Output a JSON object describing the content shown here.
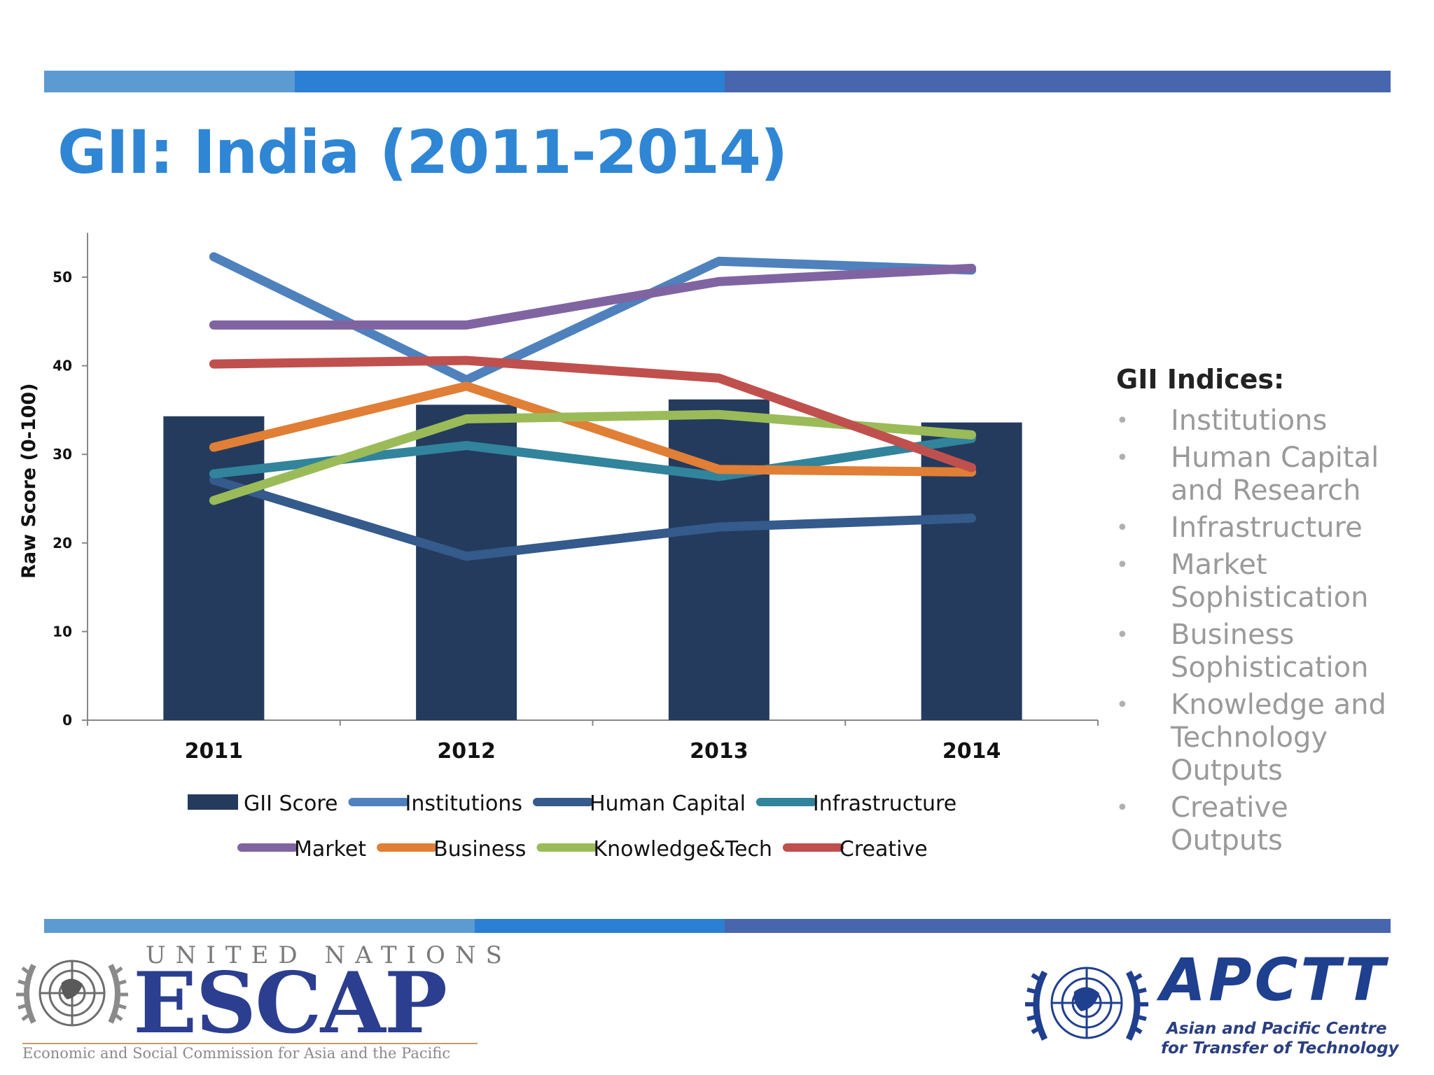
{
  "title": "GII: India (2011-2014)",
  "colors": {
    "strip_light": "#5c9bd1",
    "strip_mid": "#2b7fd4",
    "strip_dark": "#4766ad",
    "title": "#2f86d4"
  },
  "chart_data": {
    "type": "bar",
    "categories": [
      "2011",
      "2012",
      "2013",
      "2014"
    ],
    "ylabel": "Raw Score (0-100)",
    "xlabel": "",
    "ylim": [
      0,
      55
    ],
    "yticks": [
      0,
      10,
      20,
      30,
      40,
      50
    ],
    "grid": false,
    "legend_position": "bottom",
    "series": [
      {
        "name": "GII Score",
        "type": "bar",
        "color": "#243b5e",
        "values": [
          34.3,
          35.6,
          36.2,
          33.6
        ]
      },
      {
        "name": "Institutions",
        "type": "line",
        "color": "#4f81bd",
        "values": [
          52.3,
          38.4,
          51.8,
          50.8
        ]
      },
      {
        "name": "Human Capital",
        "type": "line",
        "color": "#355a8c",
        "values": [
          27.1,
          18.5,
          21.8,
          22.8
        ]
      },
      {
        "name": "Infrastructure",
        "type": "line",
        "color": "#31849b",
        "values": [
          27.8,
          31.0,
          27.5,
          31.8
        ]
      },
      {
        "name": "Market",
        "type": "line",
        "color": "#8064a2",
        "values": [
          44.6,
          44.6,
          49.5,
          51.0
        ]
      },
      {
        "name": "Business",
        "type": "line",
        "color": "#e07f35",
        "values": [
          30.8,
          37.7,
          28.3,
          28.0
        ]
      },
      {
        "name": "Knowledge&Tech",
        "type": "line",
        "color": "#9bbb59",
        "values": [
          24.8,
          34.0,
          34.5,
          32.2
        ]
      },
      {
        "name": "Creative",
        "type": "line",
        "color": "#c0504d",
        "values": [
          40.2,
          40.6,
          38.6,
          28.5
        ]
      }
    ]
  },
  "indices": {
    "heading": "GII Indices:",
    "bullet": "•",
    "items": [
      {
        "lines": [
          "Institutions"
        ]
      },
      {
        "lines": [
          "Human Capital",
          "and Research"
        ]
      },
      {
        "lines": [
          "Infrastructure"
        ]
      },
      {
        "lines": [
          "Market",
          "Sophistication"
        ]
      },
      {
        "lines": [
          "Business",
          "Sophistication"
        ]
      },
      {
        "lines": [
          "Knowledge and",
          "Technology",
          "Outputs"
        ]
      },
      {
        "lines": [
          "Creative",
          "Outputs"
        ]
      }
    ]
  },
  "logos": {
    "escap": {
      "un_text": "UNITED NATIONS",
      "name": "ESCAP",
      "subtitle": "Economic and Social Commission for Asia and the Pacific"
    },
    "apctt": {
      "name": "APCTT",
      "subtitle_line1": "Asian and Pacific Centre",
      "subtitle_line2": "for Transfer of Technology"
    }
  }
}
